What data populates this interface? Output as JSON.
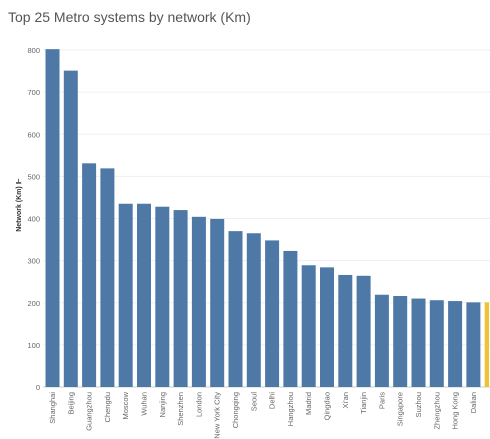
{
  "chart_data": {
    "type": "bar",
    "title": "Top 25 Metro systems by network (Km)",
    "ylabel": "Network (Km) ⊩",
    "xlabel": "",
    "ylim": [
      0,
      800
    ],
    "yticks": [
      0,
      100,
      200,
      300,
      400,
      500,
      600,
      700,
      800
    ],
    "grid": true,
    "categories": [
      "Shanghai",
      "Beijing",
      "Guangzhou",
      "Chengdu",
      "Moscow",
      "Wuhan",
      "Nanjing",
      "Shenzhen",
      "London",
      "New York City",
      "Chongqing",
      "Seoul",
      "Delhi",
      "Hangzhou",
      "Madrid",
      "Qingdao",
      "Xi'an",
      "Tianjin",
      "Paris",
      "Singapore",
      "Suzhou",
      "Zhengzhou",
      "Hong Kong",
      "Dalian",
      ""
    ],
    "values": [
      802,
      751,
      531,
      519,
      435,
      435,
      428,
      420,
      404,
      399,
      370,
      365,
      348,
      323,
      289,
      284,
      266,
      264,
      219,
      216,
      210,
      206,
      204,
      201,
      201
    ],
    "colors": [
      "#4e79a7",
      "#4e79a7",
      "#4e79a7",
      "#4e79a7",
      "#4e79a7",
      "#4e79a7",
      "#4e79a7",
      "#4e79a7",
      "#4e79a7",
      "#4e79a7",
      "#4e79a7",
      "#4e79a7",
      "#4e79a7",
      "#4e79a7",
      "#4e79a7",
      "#4e79a7",
      "#4e79a7",
      "#4e79a7",
      "#4e79a7",
      "#4e79a7",
      "#4e79a7",
      "#4e79a7",
      "#4e79a7",
      "#4e79a7",
      "#f1c232"
    ]
  }
}
